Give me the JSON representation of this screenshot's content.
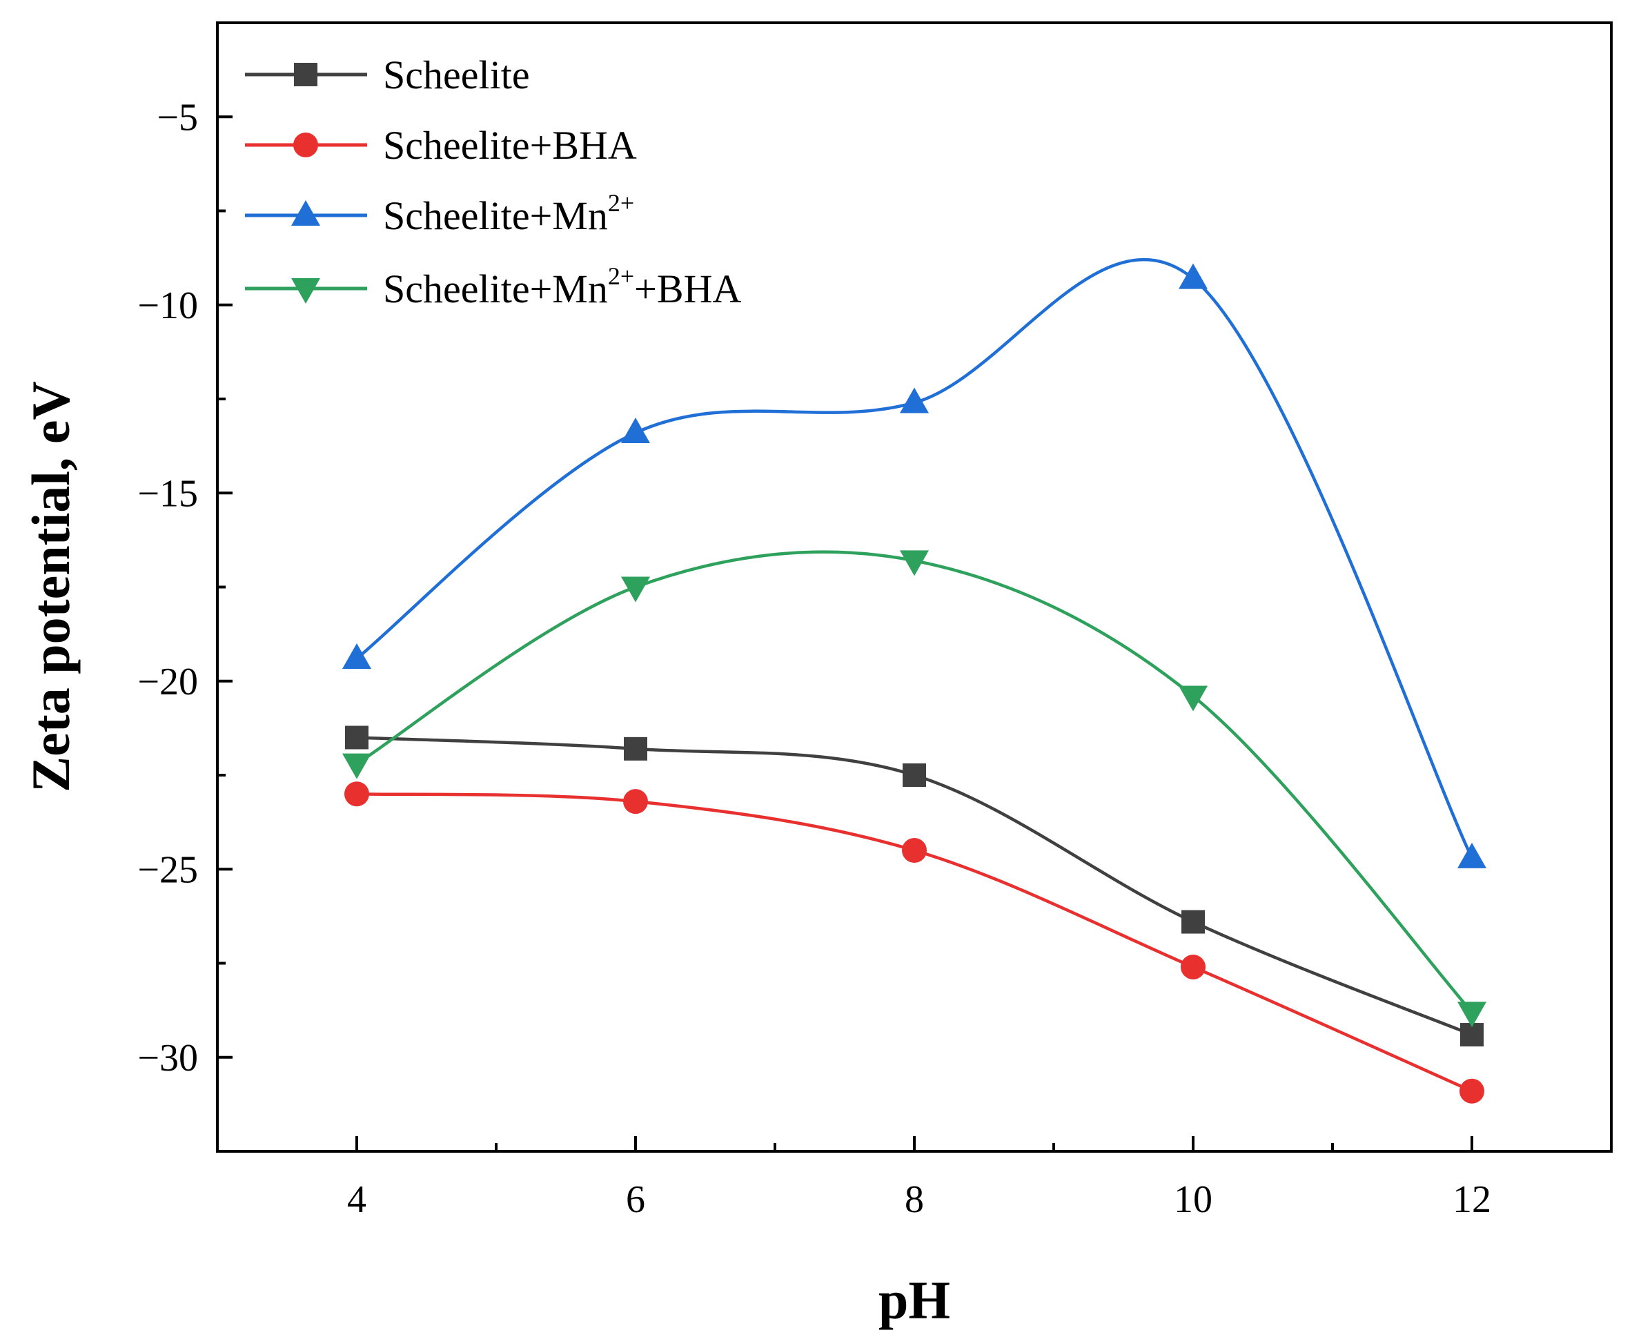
{
  "chart_data": {
    "type": "line",
    "title": "",
    "xlabel": "pH",
    "ylabel": "Zeta potential, eV",
    "xlim": [
      3,
      13
    ],
    "ylim": [
      -32.5,
      -2.5
    ],
    "x_ticks": [
      4,
      6,
      8,
      10,
      12
    ],
    "x_tick_labels": [
      "4",
      "6",
      "8",
      "10",
      "12"
    ],
    "y_ticks": [
      -5,
      -10,
      -15,
      -20,
      -25,
      -30
    ],
    "y_tick_labels": [
      "−5",
      "−10",
      "−15",
      "−20",
      "−25",
      "−30"
    ],
    "grid": false,
    "smooth": true,
    "legend_position": "top-left",
    "x": [
      4,
      6,
      8,
      10,
      12
    ],
    "series": [
      {
        "name": "Scheelite",
        "legend_parts": [
          "Scheelite"
        ],
        "color": "#404040",
        "marker": "square",
        "values": [
          -21.5,
          -21.8,
          -22.5,
          -26.4,
          -29.4
        ]
      },
      {
        "name": "Scheelite+BHA",
        "legend_parts": [
          "Scheelite+BHA"
        ],
        "color": "#e8302f",
        "marker": "circle",
        "values": [
          -23.0,
          -23.2,
          -24.5,
          -27.6,
          -30.9
        ]
      },
      {
        "name": "Scheelite+Mn2+",
        "legend_parts": [
          "Scheelite+Mn",
          "2+",
          ""
        ],
        "color": "#1f6fd6",
        "marker": "triangle-up",
        "values": [
          -19.4,
          -13.4,
          -12.6,
          -9.3,
          -24.7
        ]
      },
      {
        "name": "Scheelite+Mn2++BHA",
        "legend_parts": [
          "Scheelite+Mn",
          "2+",
          "+BHA"
        ],
        "color": "#2ea15c",
        "marker": "triangle-down",
        "values": [
          -22.2,
          -17.5,
          -16.8,
          -20.4,
          -28.8
        ]
      }
    ]
  }
}
